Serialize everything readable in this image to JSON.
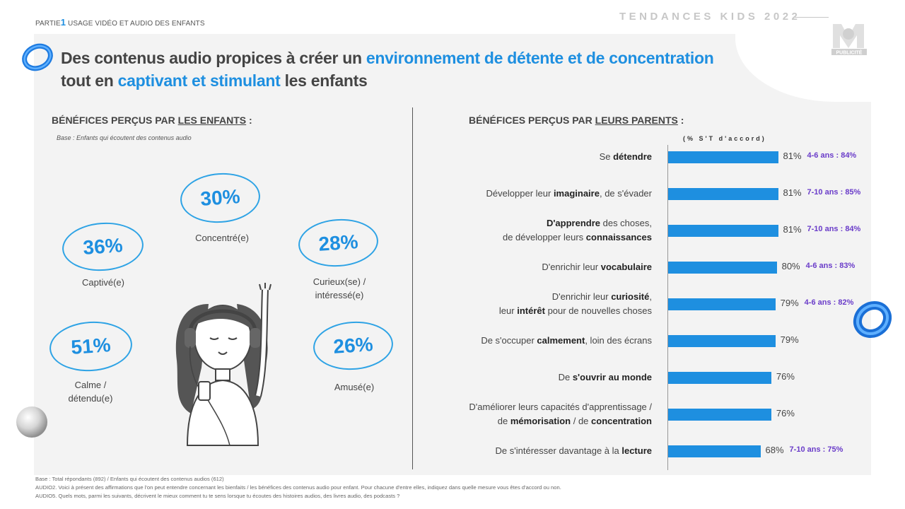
{
  "header": {
    "partie_label": "PARTIE",
    "partie_number": "1",
    "section_label": "USAGE VIDÉO  ET AUDIO DES ENFANTS",
    "brand_title": "TENDANCES KIDS 2022",
    "logo_text": "PUBLICITÉ"
  },
  "title": {
    "line1_part1": "Des contenus audio propices à créer un ",
    "line1_accent": "environnement de détente et de concentration",
    "line2_part1": "tout en ",
    "line2_accent": "captivant et stimulant",
    "line2_part2": " les enfants"
  },
  "left": {
    "heading_prefix": "BÉNÉFICES PERÇUS PAR ",
    "heading_underlined": "LES ENFANTS",
    "heading_suffix": " :",
    "base_note": "Base : Enfants qui écoutent des contenus audio",
    "bubbles": [
      {
        "value": "30%",
        "label_line1": "Concentré(e)",
        "label_line2": ""
      },
      {
        "value": "36%",
        "label_line1": "Captivé(e)",
        "label_line2": ""
      },
      {
        "value": "28%",
        "label_line1": "Curieux(se) /",
        "label_line2": "intéressé(e)"
      },
      {
        "value": "51%",
        "label_line1": "Calme /",
        "label_line2": "détendu(e)"
      },
      {
        "value": "26%",
        "label_line1": "Amusé(e)",
        "label_line2": ""
      }
    ]
  },
  "right": {
    "heading_prefix": "BÉNÉFICES PERÇUS PAR ",
    "heading_underlined": "LEURS PARENTS",
    "heading_suffix": " :",
    "unit_label": "(% S'T d'accord)"
  },
  "chart_data": [
    {
      "type": "bar",
      "orientation": "horizontal",
      "title": "BÉNÉFICES PERÇUS PAR LEURS PARENTS :",
      "unit": "(% S'T d'accord)",
      "xlim": [
        0,
        100
      ],
      "bar_color": "#1e8fe0",
      "categories": [
        "Se détendre",
        "Développer leur imaginaire, de s'évader",
        "D'apprendre des choses, de développer leurs connaissances",
        "D'enrichir leur vocabulaire",
        "D'enrichir leur curiosité, leur intérêt pour de nouvelles choses",
        "De s'occuper calmement, loin des écrans",
        "De s'ouvrir au monde",
        "D'améliorer leurs capacités d'apprentissage / de mémorisation / de concentration",
        "De s'intéresser davantage à la lecture"
      ],
      "values": [
        81,
        81,
        81,
        80,
        79,
        79,
        76,
        76,
        68
      ],
      "value_labels": [
        "81%",
        "81%",
        "81%",
        "80%",
        "79%",
        "79%",
        "76%",
        "76%",
        "68%"
      ],
      "age_annotations": [
        "4-6 ans : 84%",
        "7-10 ans : 85%",
        "7-10 ans : 84%",
        "4-6 ans : 83%",
        "4-6 ans : 82%",
        "",
        "",
        "",
        "7-10 ans : 75%"
      ],
      "label_rows": [
        {
          "l1": [
            {
              "t": "Se "
            },
            {
              "t": "détendre",
              "b": true
            }
          ],
          "l2": []
        },
        {
          "l1": [
            {
              "t": "Développer leur "
            },
            {
              "t": "imaginaire",
              "b": true
            },
            {
              "t": ", de s'évader"
            }
          ],
          "l2": []
        },
        {
          "l1": [
            {
              "t": "D'apprendre",
              "b": true
            },
            {
              "t": " des choses,"
            }
          ],
          "l2": [
            {
              "t": "de développer  leurs "
            },
            {
              "t": "connaissances",
              "b": true
            }
          ]
        },
        {
          "l1": [
            {
              "t": "D'enrichir leur "
            },
            {
              "t": "vocabulaire",
              "b": true
            }
          ],
          "l2": []
        },
        {
          "l1": [
            {
              "t": "D'enrichir leur "
            },
            {
              "t": "curiosité",
              "b": true
            },
            {
              "t": ","
            }
          ],
          "l2": [
            {
              "t": "leur "
            },
            {
              "t": "intérêt",
              "b": true
            },
            {
              "t": " pour de nouvelles choses"
            }
          ]
        },
        {
          "l1": [
            {
              "t": "De s'occuper "
            },
            {
              "t": "calmement",
              "b": true
            },
            {
              "t": ", loin des écrans"
            }
          ],
          "l2": []
        },
        {
          "l1": [
            {
              "t": "De "
            },
            {
              "t": "s'ouvrir au monde",
              "b": true
            }
          ],
          "l2": []
        },
        {
          "l1": [
            {
              "t": "D'améliorer leurs capacités d'apprentissage  /"
            }
          ],
          "l2": [
            {
              "t": "de "
            },
            {
              "t": "mémorisation",
              "b": true
            },
            {
              "t": " / de "
            },
            {
              "t": "concentration",
              "b": true
            }
          ]
        },
        {
          "l1": [
            {
              "t": "De s'intéresser davantage  à la "
            },
            {
              "t": "lecture",
              "b": true
            }
          ],
          "l2": []
        }
      ]
    },
    {
      "type": "bubble",
      "title": "BÉNÉFICES PERÇUS PAR LES ENFANTS :",
      "categories": [
        "Concentré(e)",
        "Captivé(e)",
        "Curieux(se) / intéressé(e)",
        "Calme / détendu(e)",
        "Amusé(e)"
      ],
      "values": [
        30,
        36,
        28,
        51,
        26
      ]
    }
  ],
  "footnotes": [
    "Base :  Total répondants (892) / Enfants qui écoutent des contenus audios (612)",
    "AUDIO2. Voici à présent des affirmations que l'on peut entendre concernant les bienfaits / les bénéfices des contenus audio pour enfant. Pour chacune d'entre elles, indiquez dans quelle mesure vous êtes d'accord ou non.",
    "AUDIO5. Quels mots, parmi les suivants, décrivent le mieux comment tu te sens lorsque tu écoutes des histoires audios, des livres audio, des podcasts ?"
  ]
}
